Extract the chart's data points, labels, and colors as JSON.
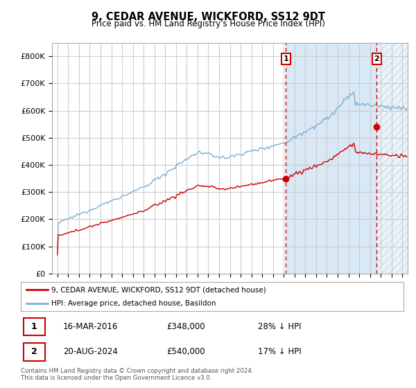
{
  "title": "9, CEDAR AVENUE, WICKFORD, SS12 9DT",
  "subtitle": "Price paid vs. HM Land Registry's House Price Index (HPI)",
  "background_color": "#f0f4fa",
  "plot_bg_color": "#ffffff",
  "grid_color": "#cccccc",
  "highlight_color": "#d8e8f5",
  "hatch_color": "#b8cce4",
  "ylim": [
    0,
    850000
  ],
  "yticks": [
    0,
    100000,
    200000,
    300000,
    400000,
    500000,
    600000,
    700000,
    800000
  ],
  "ytick_labels": [
    "£0",
    "£100K",
    "£200K",
    "£300K",
    "£400K",
    "£500K",
    "£600K",
    "£700K",
    "£800K"
  ],
  "xlim_left": 1994.5,
  "xlim_right": 2027.5,
  "hpi_color": "#7bafd4",
  "price_color": "#cc0000",
  "marker_color": "#cc0000",
  "dashed_line_color": "#cc0000",
  "annotation_box_color": "#cc0000",
  "sale1_date": "16-MAR-2016",
  "sale1_price": 348000,
  "sale1_label": "28% ↓ HPI",
  "sale1_x": 2016.21,
  "sale2_date": "20-AUG-2024",
  "sale2_price": 540000,
  "sale2_label": "17% ↓ HPI",
  "sale2_x": 2024.63,
  "legend_line1": "9, CEDAR AVENUE, WICKFORD, SS12 9DT (detached house)",
  "legend_line2": "HPI: Average price, detached house, Basildon",
  "footnote": "Contains HM Land Registry data © Crown copyright and database right 2024.\nThis data is licensed under the Open Government Licence v3.0."
}
